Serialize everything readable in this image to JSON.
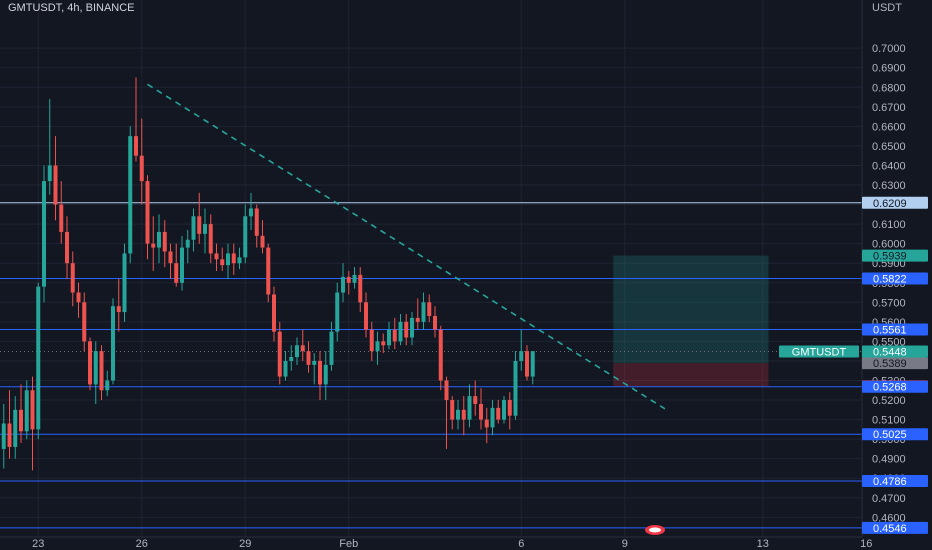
{
  "header": {
    "title": "GMTUSDT, 4h, BINANCE"
  },
  "chart_data": {
    "type": "candlestick",
    "symbol": "GMTUSDT",
    "interval": "4h",
    "exchange": "BINANCE",
    "y_axis": {
      "unit": "USDT",
      "range": [
        0.453,
        0.718
      ],
      "ticks": [
        "0.7000",
        "0.6900",
        "0.6800",
        "0.6700",
        "0.6600",
        "0.6500",
        "0.6400",
        "0.6300",
        "0.6200",
        "0.6100",
        "0.6000",
        "0.5900",
        "0.5800",
        "0.5700",
        "0.5600",
        "0.5500",
        "0.5400",
        "0.5300",
        "0.5200",
        "0.5100",
        "0.5000",
        "0.4900",
        "0.4800",
        "0.4700",
        "0.4600"
      ]
    },
    "x_axis": {
      "ticks": [
        {
          "label": "23",
          "index": 7
        },
        {
          "label": "26",
          "index": 25
        },
        {
          "label": "29",
          "index": 43
        },
        {
          "label": "Feb",
          "index": 61
        },
        {
          "label": "6",
          "index": 91
        },
        {
          "label": "9",
          "index": 109
        },
        {
          "label": "13",
          "index": 133
        },
        {
          "label": "16",
          "index": 151
        }
      ]
    },
    "horizontal_levels": [
      {
        "value": "0.6209",
        "color": "#b2cff0",
        "text": "#131722"
      },
      {
        "value": "0.5822",
        "color": "#2962ff",
        "text": "#ffffff"
      },
      {
        "value": "0.5561",
        "color": "#2962ff",
        "text": "#ffffff"
      },
      {
        "value": "0.5268",
        "color": "#2962ff",
        "text": "#ffffff"
      },
      {
        "value": "0.5025",
        "color": "#2962ff",
        "text": "#ffffff"
      },
      {
        "value": "0.4786",
        "color": "#2962ff",
        "text": "#ffffff"
      },
      {
        "value": "0.4546",
        "color": "#2962ff",
        "text": "#ffffff"
      }
    ],
    "price_labels": [
      {
        "value": "0.5939",
        "color": "#26a69a",
        "text": "#131722"
      },
      {
        "value": "0.5389",
        "color": "#787b86",
        "text": "#131722"
      },
      {
        "value": "0.5270",
        "color": "#f23645",
        "text": "#131722"
      }
    ],
    "last_price": {
      "symbol": "GMTUSDT",
      "value": "0.5448",
      "color": "#26a69a"
    },
    "trendline": {
      "from": {
        "index": 26,
        "price": 0.6815
      },
      "to": {
        "index": 116,
        "price": 0.5155
      },
      "color": "#26a69a",
      "style": "dashed"
    },
    "position": {
      "start_index": 107,
      "end_index": 134,
      "entry": 0.5389,
      "target": 0.5939,
      "stop": 0.527
    },
    "colors": {
      "up": "#26a69a",
      "down": "#ef5350",
      "background": "#131722",
      "grid": "#1f2433",
      "axis_text": "#b2b5be"
    },
    "candles": [
      [
        0.512,
        0.532,
        0.488,
        0.495
      ],
      [
        0.495,
        0.518,
        0.485,
        0.508
      ],
      [
        0.508,
        0.525,
        0.49,
        0.496
      ],
      [
        0.496,
        0.522,
        0.49,
        0.515
      ],
      [
        0.515,
        0.528,
        0.498,
        0.504
      ],
      [
        0.504,
        0.53,
        0.5,
        0.525
      ],
      [
        0.525,
        0.532,
        0.484,
        0.505
      ],
      [
        0.505,
        0.58,
        0.5,
        0.578
      ],
      [
        0.578,
        0.64,
        0.57,
        0.632
      ],
      [
        0.632,
        0.674,
        0.625,
        0.64
      ],
      [
        0.64,
        0.655,
        0.612,
        0.62
      ],
      [
        0.62,
        0.632,
        0.6,
        0.606
      ],
      [
        0.606,
        0.614,
        0.582,
        0.59
      ],
      [
        0.59,
        0.596,
        0.568,
        0.575
      ],
      [
        0.575,
        0.58,
        0.562,
        0.57
      ],
      [
        0.57,
        0.575,
        0.545,
        0.55
      ],
      [
        0.55,
        0.552,
        0.525,
        0.528
      ],
      [
        0.528,
        0.55,
        0.518,
        0.545
      ],
      [
        0.545,
        0.548,
        0.52,
        0.525
      ],
      [
        0.525,
        0.535,
        0.522,
        0.53
      ],
      [
        0.53,
        0.572,
        0.528,
        0.568
      ],
      [
        0.568,
        0.582,
        0.555,
        0.565
      ],
      [
        0.565,
        0.6,
        0.56,
        0.595
      ],
      [
        0.595,
        0.66,
        0.59,
        0.655
      ],
      [
        0.655,
        0.685,
        0.642,
        0.645
      ],
      [
        0.645,
        0.664,
        0.62,
        0.632
      ],
      [
        0.632,
        0.635,
        0.592,
        0.6
      ],
      [
        0.6,
        0.614,
        0.586,
        0.598
      ],
      [
        0.598,
        0.615,
        0.59,
        0.606
      ],
      [
        0.606,
        0.612,
        0.588,
        0.596
      ],
      [
        0.596,
        0.6,
        0.582,
        0.59
      ],
      [
        0.59,
        0.6,
        0.578,
        0.58
      ],
      [
        0.58,
        0.604,
        0.576,
        0.598
      ],
      [
        0.598,
        0.607,
        0.59,
        0.602
      ],
      [
        0.602,
        0.618,
        0.596,
        0.614
      ],
      [
        0.614,
        0.626,
        0.6,
        0.605
      ],
      [
        0.605,
        0.618,
        0.595,
        0.61
      ],
      [
        0.61,
        0.615,
        0.59,
        0.595
      ],
      [
        0.595,
        0.6,
        0.586,
        0.592
      ],
      [
        0.592,
        0.598,
        0.586,
        0.589
      ],
      [
        0.589,
        0.6,
        0.582,
        0.595
      ],
      [
        0.595,
        0.6,
        0.584,
        0.59
      ],
      [
        0.59,
        0.598,
        0.587,
        0.593
      ],
      [
        0.593,
        0.62,
        0.59,
        0.614
      ],
      [
        0.614,
        0.626,
        0.607,
        0.618
      ],
      [
        0.618,
        0.62,
        0.598,
        0.604
      ],
      [
        0.604,
        0.612,
        0.595,
        0.598
      ],
      [
        0.598,
        0.6,
        0.57,
        0.574
      ],
      [
        0.574,
        0.578,
        0.55,
        0.555
      ],
      [
        0.555,
        0.56,
        0.528,
        0.532
      ],
      [
        0.532,
        0.545,
        0.53,
        0.54
      ],
      [
        0.54,
        0.548,
        0.535,
        0.542
      ],
      [
        0.542,
        0.552,
        0.538,
        0.548
      ],
      [
        0.548,
        0.556,
        0.54,
        0.545
      ],
      [
        0.545,
        0.55,
        0.534,
        0.538
      ],
      [
        0.538,
        0.544,
        0.528,
        0.54
      ],
      [
        0.54,
        0.545,
        0.52,
        0.528
      ],
      [
        0.528,
        0.545,
        0.52,
        0.538
      ],
      [
        0.538,
        0.56,
        0.535,
        0.555
      ],
      [
        0.555,
        0.58,
        0.55,
        0.575
      ],
      [
        0.575,
        0.59,
        0.57,
        0.583
      ],
      [
        0.583,
        0.586,
        0.574,
        0.58
      ],
      [
        0.58,
        0.588,
        0.577,
        0.584
      ],
      [
        0.584,
        0.588,
        0.565,
        0.57
      ],
      [
        0.57,
        0.575,
        0.552,
        0.556
      ],
      [
        0.556,
        0.56,
        0.54,
        0.545
      ],
      [
        0.545,
        0.555,
        0.538,
        0.55
      ],
      [
        0.55,
        0.554,
        0.544,
        0.548
      ],
      [
        0.548,
        0.56,
        0.546,
        0.556
      ],
      [
        0.556,
        0.562,
        0.546,
        0.55
      ],
      [
        0.55,
        0.564,
        0.548,
        0.56
      ],
      [
        0.56,
        0.564,
        0.548,
        0.552
      ],
      [
        0.552,
        0.565,
        0.548,
        0.562
      ],
      [
        0.562,
        0.572,
        0.556,
        0.56
      ],
      [
        0.56,
        0.575,
        0.556,
        0.57
      ],
      [
        0.57,
        0.574,
        0.56,
        0.563
      ],
      [
        0.563,
        0.568,
        0.552,
        0.556
      ],
      [
        0.556,
        0.558,
        0.525,
        0.53
      ],
      [
        0.53,
        0.532,
        0.495,
        0.52
      ],
      [
        0.52,
        0.522,
        0.505,
        0.51
      ],
      [
        0.51,
        0.52,
        0.505,
        0.515
      ],
      [
        0.515,
        0.522,
        0.502,
        0.51
      ],
      [
        0.51,
        0.528,
        0.506,
        0.522
      ],
      [
        0.522,
        0.53,
        0.512,
        0.518
      ],
      [
        0.518,
        0.526,
        0.505,
        0.51
      ],
      [
        0.51,
        0.516,
        0.498,
        0.506
      ],
      [
        0.506,
        0.52,
        0.502,
        0.516
      ],
      [
        0.516,
        0.52,
        0.508,
        0.51
      ],
      [
        0.51,
        0.522,
        0.508,
        0.52
      ],
      [
        0.52,
        0.524,
        0.505,
        0.512
      ],
      [
        0.512,
        0.545,
        0.51,
        0.54
      ],
      [
        0.54,
        0.556,
        0.535,
        0.545
      ],
      [
        0.545,
        0.548,
        0.53,
        0.532
      ],
      [
        0.532,
        0.545,
        0.528,
        0.545
      ]
    ]
  }
}
